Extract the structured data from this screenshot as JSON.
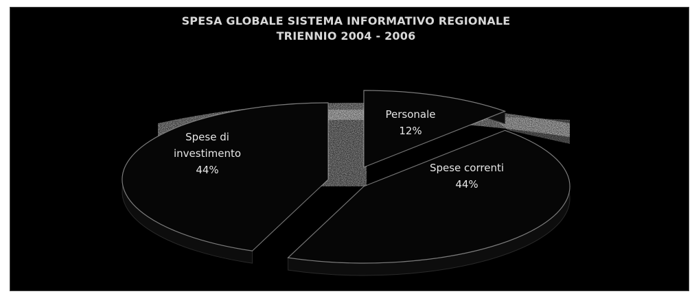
{
  "chart_data": {
    "type": "pie",
    "title": "SPESA GLOBALE SISTEMA INFORMATIVO REGIONALE",
    "subtitle": "TRIENNIO 2004 - 2006",
    "categories": [
      "Spese di investimento",
      "Personale",
      "Spese correnti"
    ],
    "labels": [
      [
        "Spese di",
        "investimento",
        "44%"
      ],
      [
        "Personale",
        "12%"
      ],
      [
        "Spese correnti",
        "44%"
      ]
    ],
    "values": [
      44,
      12,
      44
    ],
    "value_unit": "%",
    "style": "3d-exploded"
  },
  "colors": {
    "background": "#000000",
    "slice_fill": "#060606",
    "slice_edge": "#cfcfcf",
    "texture": "#8a8a8a",
    "text": "#e6e6e6"
  }
}
